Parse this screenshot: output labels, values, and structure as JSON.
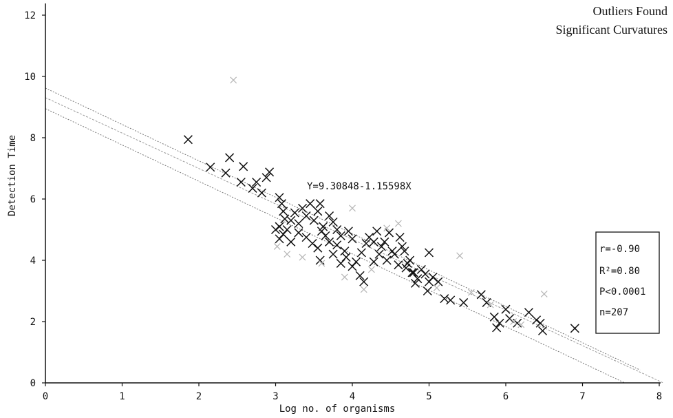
{
  "chart_data": {
    "type": "scatter",
    "title": "",
    "xlabel": "Log no. of organisms",
    "ylabel": "Detection Time",
    "xlim": [
      0,
      8
    ],
    "ylim": [
      0,
      12
    ],
    "x_ticks": [
      0,
      1,
      2,
      3,
      4,
      5,
      6,
      7,
      8
    ],
    "y_ticks": [
      0,
      2,
      4,
      6,
      8,
      10,
      12
    ],
    "grid": false,
    "legend": "none",
    "notes": [
      "Outliers Found",
      "Significant Curvatures"
    ],
    "equation": "Y=9.30848-1.15598X",
    "regression": {
      "intercept": 9.30848,
      "slope": -1.15598
    },
    "confidence_band": {
      "upper": [
        [
          0,
          9.62
        ],
        [
          7.75,
          0.42
        ]
      ],
      "lower": [
        [
          0,
          8.95
        ],
        [
          7.55,
          0.0
        ]
      ]
    },
    "stats_box": [
      "r=-0.90",
      "R²=0.80",
      "P<0.0001",
      "n=207"
    ],
    "series": [
      {
        "marker": "x",
        "color": "#111111",
        "points": [
          [
            1.86,
            7.94
          ],
          [
            2.15,
            7.04
          ],
          [
            2.4,
            7.35
          ],
          [
            2.35,
            6.85
          ],
          [
            2.58,
            7.06
          ],
          [
            2.55,
            6.55
          ],
          [
            2.7,
            6.35
          ],
          [
            2.75,
            6.55
          ],
          [
            2.82,
            6.2
          ],
          [
            2.88,
            6.7
          ],
          [
            2.92,
            6.88
          ],
          [
            3.05,
            6.05
          ],
          [
            3.08,
            5.85
          ],
          [
            3.1,
            5.6
          ],
          [
            3.12,
            5.35
          ],
          [
            3.05,
            5.1
          ],
          [
            3.15,
            5.0
          ],
          [
            3.2,
            5.3
          ],
          [
            3.25,
            5.55
          ],
          [
            3.3,
            5.2
          ],
          [
            3.35,
            5.7
          ],
          [
            3.4,
            5.45
          ],
          [
            3.45,
            5.85
          ],
          [
            3.5,
            5.3
          ],
          [
            3.55,
            5.6
          ],
          [
            3.58,
            5.85
          ],
          [
            3.62,
            5.1
          ],
          [
            3.65,
            4.8
          ],
          [
            3.7,
            5.45
          ],
          [
            3.75,
            5.25
          ],
          [
            3.8,
            5.0
          ],
          [
            3.0,
            5.0
          ],
          [
            3.05,
            4.7
          ],
          [
            3.1,
            4.85
          ],
          [
            3.2,
            4.6
          ],
          [
            3.3,
            4.9
          ],
          [
            3.4,
            4.75
          ],
          [
            3.48,
            4.55
          ],
          [
            3.55,
            4.4
          ],
          [
            3.6,
            4.95
          ],
          [
            3.7,
            4.6
          ],
          [
            3.8,
            4.5
          ],
          [
            3.85,
            4.8
          ],
          [
            3.9,
            4.3
          ],
          [
            3.95,
            4.95
          ],
          [
            4.0,
            4.7
          ],
          [
            3.58,
            4.0
          ],
          [
            3.75,
            4.2
          ],
          [
            3.85,
            3.9
          ],
          [
            3.92,
            4.1
          ],
          [
            4.0,
            3.8
          ],
          [
            4.05,
            3.95
          ],
          [
            4.12,
            4.25
          ],
          [
            4.18,
            4.55
          ],
          [
            4.22,
            4.75
          ],
          [
            4.28,
            4.6
          ],
          [
            4.32,
            4.95
          ],
          [
            4.38,
            4.45
          ],
          [
            4.42,
            4.6
          ],
          [
            4.48,
            4.9
          ],
          [
            4.52,
            4.3
          ],
          [
            4.1,
            3.5
          ],
          [
            4.15,
            3.3
          ],
          [
            4.28,
            3.95
          ],
          [
            4.35,
            4.2
          ],
          [
            4.45,
            4.0
          ],
          [
            4.55,
            4.2
          ],
          [
            4.6,
            3.85
          ],
          [
            4.65,
            4.45
          ],
          [
            4.7,
            3.75
          ],
          [
            4.75,
            4.0
          ],
          [
            4.8,
            3.6
          ],
          [
            4.85,
            3.4
          ],
          [
            4.9,
            3.7
          ],
          [
            4.95,
            3.55
          ],
          [
            5.0,
            3.3
          ],
          [
            5.05,
            3.45
          ],
          [
            4.62,
            4.75
          ],
          [
            4.68,
            4.3
          ],
          [
            4.72,
            3.9
          ],
          [
            4.78,
            3.6
          ],
          [
            4.82,
            3.25
          ],
          [
            4.98,
            3.0
          ],
          [
            5.0,
            4.25
          ],
          [
            5.12,
            3.3
          ],
          [
            5.2,
            2.75
          ],
          [
            5.28,
            2.7
          ],
          [
            5.45,
            2.62
          ],
          [
            5.68,
            2.88
          ],
          [
            5.75,
            2.62
          ],
          [
            5.85,
            2.15
          ],
          [
            5.92,
            1.95
          ],
          [
            5.88,
            1.8
          ],
          [
            6.0,
            2.4
          ],
          [
            6.05,
            2.1
          ],
          [
            6.15,
            1.95
          ],
          [
            6.3,
            2.3
          ],
          [
            6.4,
            2.05
          ],
          [
            6.45,
            1.95
          ],
          [
            6.48,
            1.7
          ],
          [
            6.9,
            1.78
          ]
        ]
      },
      {
        "marker": "x",
        "color": "#b5b5b5",
        "points": [
          [
            2.45,
            9.88
          ],
          [
            3.02,
            4.45
          ],
          [
            3.15,
            4.2
          ],
          [
            3.35,
            4.1
          ],
          [
            3.6,
            3.9
          ],
          [
            3.9,
            3.45
          ],
          [
            4.0,
            5.7
          ],
          [
            4.15,
            3.05
          ],
          [
            4.25,
            3.7
          ],
          [
            4.45,
            5.05
          ],
          [
            4.6,
            5.2
          ],
          [
            5.1,
            3.1
          ],
          [
            5.4,
            4.15
          ],
          [
            5.55,
            2.95
          ],
          [
            5.8,
            2.55
          ],
          [
            6.1,
            2.0
          ],
          [
            6.2,
            1.9
          ],
          [
            6.5,
            2.9
          ]
        ]
      }
    ]
  }
}
